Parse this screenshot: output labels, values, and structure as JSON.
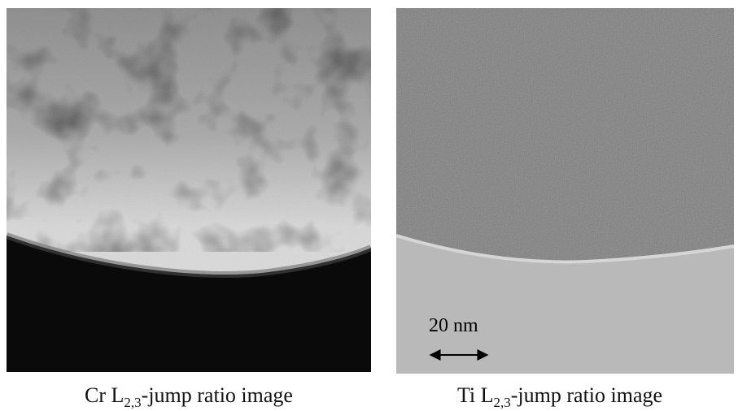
{
  "panels": [
    {
      "caption": {
        "prefix": "Cr L",
        "subscript": "2,3",
        "suffix": "-jump ratio image"
      }
    },
    {
      "caption": {
        "prefix": "Ti L",
        "subscript": "2,3",
        "suffix": "-jump ratio image"
      },
      "scale_bar": "20 nm"
    }
  ]
}
